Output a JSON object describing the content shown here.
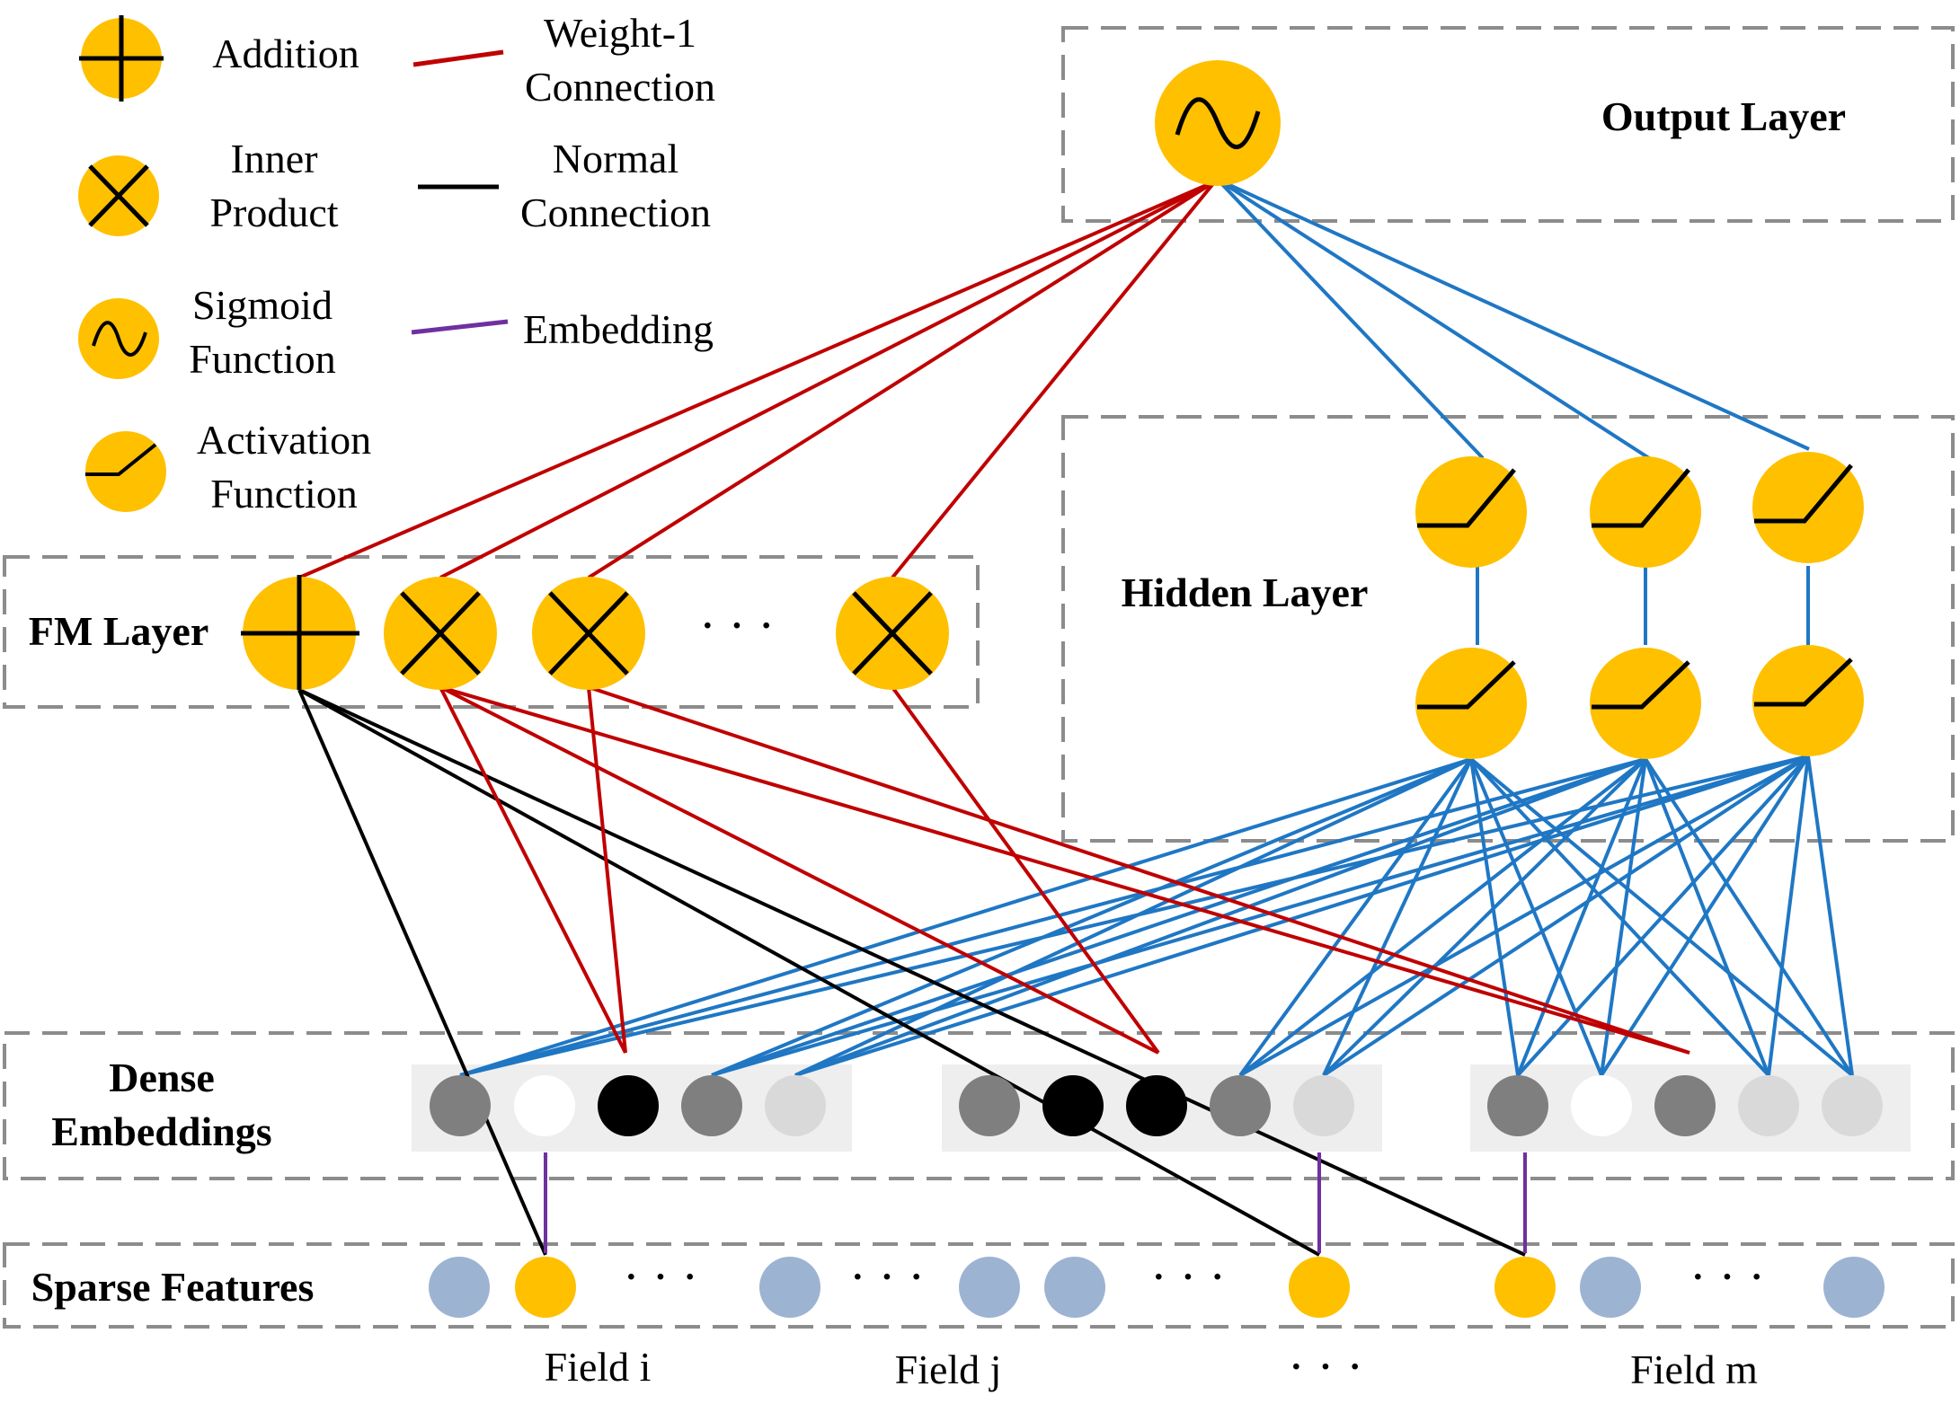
{
  "legend": {
    "addition": "Addition",
    "inner_product_1": "Inner",
    "inner_product_2": "Product",
    "sigmoid_1": "Sigmoid",
    "sigmoid_2": "Function",
    "activation_1": "Activation",
    "activation_2": "Function",
    "weight1_1": "Weight-1",
    "weight1_2": "Connection",
    "normal_1": "Normal",
    "normal_2": "Connection",
    "embedding": "Embedding"
  },
  "layers": {
    "output": "Output Layer",
    "hidden": "Hidden Layer",
    "fm": "FM Layer",
    "dense_1": "Dense",
    "dense_2": "Embeddings",
    "sparse": "Sparse Features"
  },
  "fields": {
    "i": "Field i",
    "j": "Field j",
    "m": "Field m",
    "ellipsis": "· · ·"
  },
  "ellipses": {
    "fm": "· · ·",
    "sparse": "· · ·"
  },
  "colors": {
    "node": "#FFC000",
    "weight1": "#C00000",
    "normal": "#000000",
    "hidden_link": "#1F77C4",
    "embedding": "#7030A0",
    "sparse_blue": "#9DB3D2",
    "box": "#8C8C8C"
  }
}
